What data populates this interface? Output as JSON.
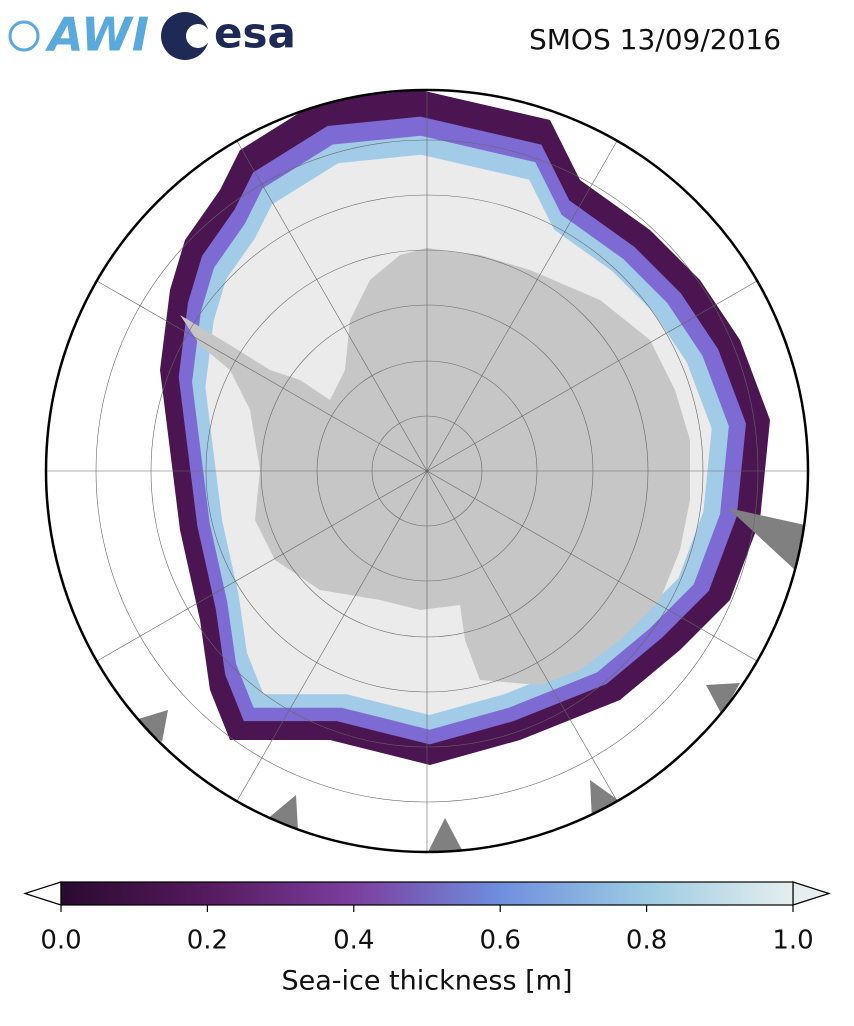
{
  "logos": {
    "awi": "AWI",
    "esa": "esa"
  },
  "title": "SMOS 13/09/2016",
  "colorbar": {
    "label": "Sea-ice thickness [m]",
    "lim": [
      0,
      1
    ],
    "ticks": [
      {
        "value": 0,
        "label": "0.0"
      },
      {
        "value": 0.2,
        "label": "0.2"
      },
      {
        "value": 0.4,
        "label": "0.4"
      },
      {
        "value": 0.6,
        "label": "0.6"
      },
      {
        "value": 0.8,
        "label": "0.8"
      },
      {
        "value": 1,
        "label": "1.0"
      }
    ]
  }
}
